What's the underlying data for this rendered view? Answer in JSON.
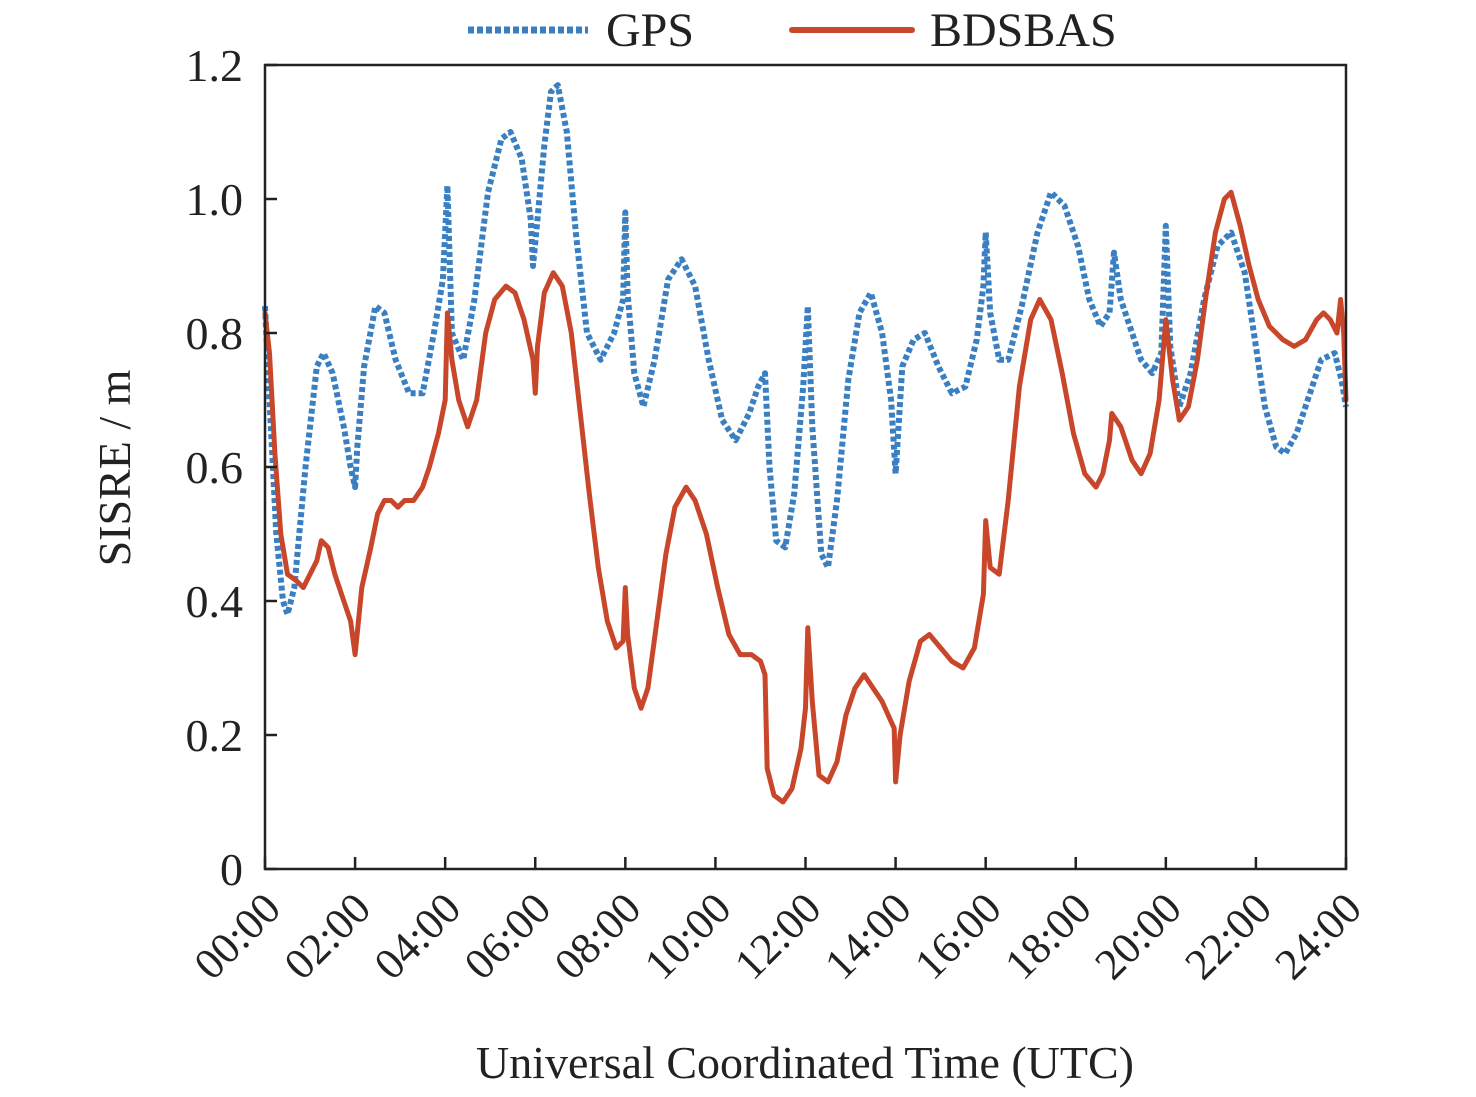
{
  "chart_data": {
    "type": "line",
    "title": "",
    "xlabel": "Universal Coordinated Time (UTC)",
    "ylabel": "SISRE / m",
    "xlim": [
      0,
      24
    ],
    "ylim": [
      0,
      1.2
    ],
    "x_ticks": [
      0,
      2,
      4,
      6,
      8,
      10,
      12,
      14,
      16,
      18,
      20,
      22,
      24
    ],
    "x_tick_labels": [
      "00:00",
      "02:00",
      "04:00",
      "06:00",
      "08:00",
      "10:00",
      "12:00",
      "14:00",
      "16:00",
      "18:00",
      "20:00",
      "22:00",
      "24:00"
    ],
    "y_ticks": [
      0,
      0.2,
      0.4,
      0.6,
      0.8,
      1.0,
      1.2
    ],
    "y_tick_labels": [
      "0",
      "0.2",
      "0.4",
      "0.6",
      "0.8",
      "1.0",
      "1.2"
    ],
    "grid": false,
    "legend_position": "top-center",
    "series": [
      {
        "name": "GPS",
        "color": "#3a7fc1",
        "style": "dotted",
        "points": [
          [
            0.0,
            0.84
          ],
          [
            0.1,
            0.7
          ],
          [
            0.25,
            0.5
          ],
          [
            0.4,
            0.4
          ],
          [
            0.5,
            0.38
          ],
          [
            0.65,
            0.42
          ],
          [
            0.9,
            0.6
          ],
          [
            1.15,
            0.75
          ],
          [
            1.3,
            0.77
          ],
          [
            1.5,
            0.74
          ],
          [
            1.75,
            0.66
          ],
          [
            1.9,
            0.6
          ],
          [
            2.0,
            0.57
          ],
          [
            2.05,
            0.63
          ],
          [
            2.2,
            0.75
          ],
          [
            2.45,
            0.84
          ],
          [
            2.65,
            0.83
          ],
          [
            2.9,
            0.76
          ],
          [
            3.2,
            0.71
          ],
          [
            3.5,
            0.71
          ],
          [
            3.75,
            0.8
          ],
          [
            3.95,
            0.88
          ],
          [
            4.05,
            1.02
          ],
          [
            4.15,
            0.8
          ],
          [
            4.4,
            0.76
          ],
          [
            4.65,
            0.85
          ],
          [
            4.95,
            1.01
          ],
          [
            5.25,
            1.09
          ],
          [
            5.45,
            1.1
          ],
          [
            5.7,
            1.06
          ],
          [
            5.9,
            0.97
          ],
          [
            5.95,
            0.9
          ],
          [
            6.05,
            0.97
          ],
          [
            6.2,
            1.08
          ],
          [
            6.35,
            1.16
          ],
          [
            6.5,
            1.17
          ],
          [
            6.7,
            1.1
          ],
          [
            6.9,
            0.95
          ],
          [
            7.15,
            0.8
          ],
          [
            7.45,
            0.76
          ],
          [
            7.75,
            0.8
          ],
          [
            7.95,
            0.85
          ],
          [
            8.0,
            0.98
          ],
          [
            8.05,
            0.86
          ],
          [
            8.2,
            0.74
          ],
          [
            8.4,
            0.69
          ],
          [
            8.65,
            0.76
          ],
          [
            8.95,
            0.88
          ],
          [
            9.25,
            0.91
          ],
          [
            9.55,
            0.87
          ],
          [
            9.85,
            0.76
          ],
          [
            10.15,
            0.67
          ],
          [
            10.45,
            0.64
          ],
          [
            10.75,
            0.68
          ],
          [
            10.95,
            0.72
          ],
          [
            11.1,
            0.74
          ],
          [
            11.2,
            0.6
          ],
          [
            11.35,
            0.49
          ],
          [
            11.55,
            0.48
          ],
          [
            11.75,
            0.56
          ],
          [
            11.95,
            0.72
          ],
          [
            12.05,
            0.84
          ],
          [
            12.15,
            0.66
          ],
          [
            12.35,
            0.47
          ],
          [
            12.5,
            0.45
          ],
          [
            12.7,
            0.55
          ],
          [
            12.95,
            0.73
          ],
          [
            13.2,
            0.83
          ],
          [
            13.45,
            0.86
          ],
          [
            13.7,
            0.8
          ],
          [
            13.9,
            0.7
          ],
          [
            14.0,
            0.59
          ],
          [
            14.15,
            0.75
          ],
          [
            14.4,
            0.79
          ],
          [
            14.65,
            0.8
          ],
          [
            14.95,
            0.75
          ],
          [
            15.25,
            0.71
          ],
          [
            15.55,
            0.72
          ],
          [
            15.8,
            0.79
          ],
          [
            15.95,
            0.87
          ],
          [
            16.0,
            0.95
          ],
          [
            16.1,
            0.83
          ],
          [
            16.3,
            0.76
          ],
          [
            16.5,
            0.76
          ],
          [
            16.8,
            0.84
          ],
          [
            17.15,
            0.95
          ],
          [
            17.45,
            1.01
          ],
          [
            17.75,
            0.99
          ],
          [
            18.05,
            0.93
          ],
          [
            18.3,
            0.85
          ],
          [
            18.55,
            0.81
          ],
          [
            18.75,
            0.83
          ],
          [
            18.85,
            0.92
          ],
          [
            19.0,
            0.85
          ],
          [
            19.2,
            0.81
          ],
          [
            19.45,
            0.76
          ],
          [
            19.7,
            0.74
          ],
          [
            19.9,
            0.77
          ],
          [
            20.0,
            0.96
          ],
          [
            20.1,
            0.78
          ],
          [
            20.3,
            0.69
          ],
          [
            20.55,
            0.74
          ],
          [
            20.85,
            0.85
          ],
          [
            21.15,
            0.93
          ],
          [
            21.45,
            0.95
          ],
          [
            21.75,
            0.89
          ],
          [
            22.0,
            0.78
          ],
          [
            22.2,
            0.69
          ],
          [
            22.45,
            0.63
          ],
          [
            22.65,
            0.62
          ],
          [
            22.9,
            0.65
          ],
          [
            23.15,
            0.7
          ],
          [
            23.45,
            0.76
          ],
          [
            23.75,
            0.77
          ],
          [
            23.9,
            0.73
          ],
          [
            24.0,
            0.69
          ]
        ]
      },
      {
        "name": "BDSBAS",
        "color": "#c8472b",
        "style": "solid",
        "points": [
          [
            0.0,
            0.83
          ],
          [
            0.1,
            0.77
          ],
          [
            0.22,
            0.62
          ],
          [
            0.35,
            0.5
          ],
          [
            0.5,
            0.44
          ],
          [
            0.7,
            0.43
          ],
          [
            0.85,
            0.42
          ],
          [
            1.0,
            0.44
          ],
          [
            1.15,
            0.46
          ],
          [
            1.25,
            0.49
          ],
          [
            1.4,
            0.48
          ],
          [
            1.55,
            0.44
          ],
          [
            1.75,
            0.4
          ],
          [
            1.9,
            0.37
          ],
          [
            2.0,
            0.32
          ],
          [
            2.15,
            0.42
          ],
          [
            2.35,
            0.48
          ],
          [
            2.5,
            0.53
          ],
          [
            2.65,
            0.55
          ],
          [
            2.8,
            0.55
          ],
          [
            2.95,
            0.54
          ],
          [
            3.1,
            0.55
          ],
          [
            3.3,
            0.55
          ],
          [
            3.5,
            0.57
          ],
          [
            3.65,
            0.6
          ],
          [
            3.85,
            0.65
          ],
          [
            4.0,
            0.7
          ],
          [
            4.05,
            0.83
          ],
          [
            4.15,
            0.76
          ],
          [
            4.3,
            0.7
          ],
          [
            4.5,
            0.66
          ],
          [
            4.7,
            0.7
          ],
          [
            4.9,
            0.8
          ],
          [
            5.1,
            0.85
          ],
          [
            5.35,
            0.87
          ],
          [
            5.55,
            0.86
          ],
          [
            5.75,
            0.82
          ],
          [
            5.95,
            0.76
          ],
          [
            6.0,
            0.71
          ],
          [
            6.05,
            0.78
          ],
          [
            6.2,
            0.86
          ],
          [
            6.4,
            0.89
          ],
          [
            6.6,
            0.87
          ],
          [
            6.8,
            0.8
          ],
          [
            7.0,
            0.68
          ],
          [
            7.2,
            0.56
          ],
          [
            7.4,
            0.45
          ],
          [
            7.6,
            0.37
          ],
          [
            7.8,
            0.33
          ],
          [
            7.95,
            0.34
          ],
          [
            8.0,
            0.42
          ],
          [
            8.05,
            0.35
          ],
          [
            8.2,
            0.27
          ],
          [
            8.35,
            0.24
          ],
          [
            8.5,
            0.27
          ],
          [
            8.7,
            0.37
          ],
          [
            8.9,
            0.47
          ],
          [
            9.1,
            0.54
          ],
          [
            9.35,
            0.57
          ],
          [
            9.55,
            0.55
          ],
          [
            9.8,
            0.5
          ],
          [
            10.05,
            0.42
          ],
          [
            10.3,
            0.35
          ],
          [
            10.55,
            0.32
          ],
          [
            10.8,
            0.32
          ],
          [
            11.0,
            0.31
          ],
          [
            11.1,
            0.29
          ],
          [
            11.15,
            0.15
          ],
          [
            11.3,
            0.11
          ],
          [
            11.5,
            0.1
          ],
          [
            11.7,
            0.12
          ],
          [
            11.9,
            0.18
          ],
          [
            12.0,
            0.24
          ],
          [
            12.05,
            0.36
          ],
          [
            12.15,
            0.25
          ],
          [
            12.3,
            0.14
          ],
          [
            12.5,
            0.13
          ],
          [
            12.7,
            0.16
          ],
          [
            12.9,
            0.23
          ],
          [
            13.1,
            0.27
          ],
          [
            13.3,
            0.29
          ],
          [
            13.5,
            0.27
          ],
          [
            13.7,
            0.25
          ],
          [
            13.9,
            0.22
          ],
          [
            13.97,
            0.21
          ],
          [
            14.0,
            0.13
          ],
          [
            14.1,
            0.2
          ],
          [
            14.3,
            0.28
          ],
          [
            14.55,
            0.34
          ],
          [
            14.75,
            0.35
          ],
          [
            15.0,
            0.33
          ],
          [
            15.25,
            0.31
          ],
          [
            15.5,
            0.3
          ],
          [
            15.75,
            0.33
          ],
          [
            15.95,
            0.41
          ],
          [
            16.0,
            0.52
          ],
          [
            16.1,
            0.45
          ],
          [
            16.3,
            0.44
          ],
          [
            16.5,
            0.55
          ],
          [
            16.75,
            0.72
          ],
          [
            17.0,
            0.82
          ],
          [
            17.2,
            0.85
          ],
          [
            17.45,
            0.82
          ],
          [
            17.7,
            0.74
          ],
          [
            17.95,
            0.65
          ],
          [
            18.2,
            0.59
          ],
          [
            18.45,
            0.57
          ],
          [
            18.6,
            0.59
          ],
          [
            18.75,
            0.64
          ],
          [
            18.8,
            0.68
          ],
          [
            19.0,
            0.66
          ],
          [
            19.25,
            0.61
          ],
          [
            19.45,
            0.59
          ],
          [
            19.65,
            0.62
          ],
          [
            19.85,
            0.7
          ],
          [
            20.0,
            0.82
          ],
          [
            20.15,
            0.73
          ],
          [
            20.3,
            0.67
          ],
          [
            20.5,
            0.69
          ],
          [
            20.7,
            0.76
          ],
          [
            20.9,
            0.86
          ],
          [
            21.1,
            0.95
          ],
          [
            21.3,
            1.0
          ],
          [
            21.45,
            1.01
          ],
          [
            21.65,
            0.96
          ],
          [
            21.85,
            0.9
          ],
          [
            22.05,
            0.85
          ],
          [
            22.3,
            0.81
          ],
          [
            22.6,
            0.79
          ],
          [
            22.85,
            0.78
          ],
          [
            23.1,
            0.79
          ],
          [
            23.35,
            0.82
          ],
          [
            23.5,
            0.83
          ],
          [
            23.65,
            0.82
          ],
          [
            23.8,
            0.8
          ],
          [
            23.88,
            0.85
          ],
          [
            23.95,
            0.8
          ],
          [
            24.0,
            0.7
          ]
        ]
      }
    ]
  }
}
